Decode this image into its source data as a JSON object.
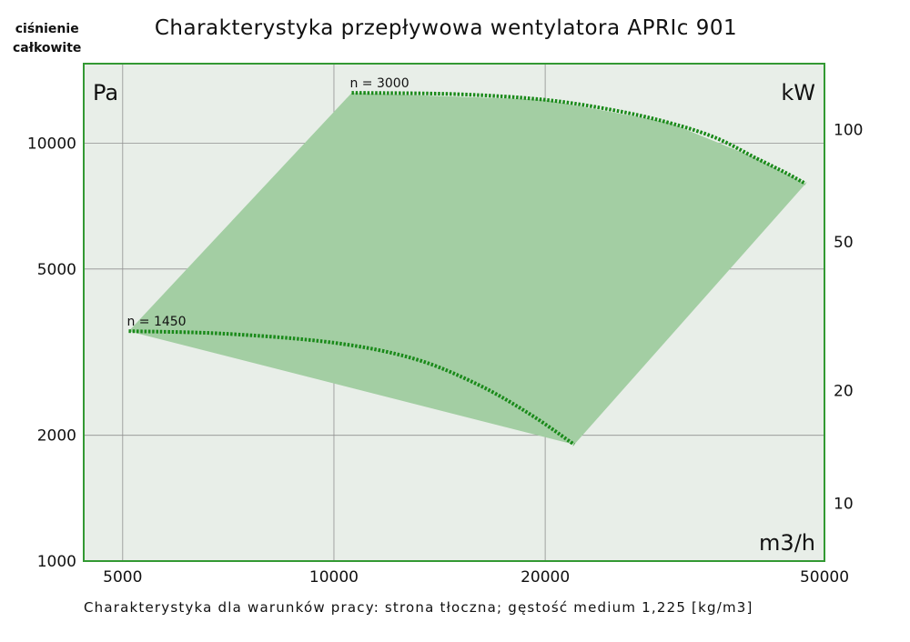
{
  "corner_label": [
    "ciśnienie",
    "całkowite"
  ],
  "title": "Charakterystyka przepływowa wentylatora APRIc 901",
  "footer": "Charakterystyka dla warunków pracy: strona tłoczna; gęstość medium 1,225 [kg/m3]",
  "colors": {
    "plot_background": "#e8eee8",
    "frame": "#339933",
    "fill_region": "#a3cea3",
    "curve": "#1a8a1a",
    "grid": "#909090"
  },
  "chart_data": {
    "type": "area",
    "x_scale": "log",
    "y_scale": "log",
    "xlim": [
      4400,
      50000
    ],
    "ylim": [
      1000,
      15500
    ],
    "y2lim": [
      7,
      150
    ],
    "grid": true,
    "x_unit": "m3/h",
    "y_unit": "Pa",
    "y2_unit": "kW",
    "x_ticks": [
      5000,
      10000,
      20000,
      50000
    ],
    "y_ticks": [
      1000,
      2000,
      5000,
      10000
    ],
    "y2_ticks": [
      10,
      20,
      50,
      100
    ],
    "region_polygon": [
      [
        5100,
        3550
      ],
      [
        10600,
        13200
      ],
      [
        20000,
        12700
      ],
      [
        30000,
        11200
      ],
      [
        40000,
        9200
      ],
      [
        47000,
        8000
      ],
      [
        22000,
        1900
      ]
    ],
    "series": [
      {
        "name": "n = 1450",
        "x": [
          5100,
          7000,
          10000,
          13000,
          16000,
          19000,
          22000
        ],
        "y": [
          3550,
          3500,
          3330,
          3050,
          2650,
          2250,
          1900
        ]
      },
      {
        "name": "n = 3000",
        "x": [
          10600,
          15000,
          20000,
          25000,
          30000,
          35000,
          40000,
          44000,
          47000
        ],
        "y": [
          13200,
          13100,
          12700,
          12000,
          11200,
          10300,
          9200,
          8500,
          8000
        ]
      }
    ]
  }
}
